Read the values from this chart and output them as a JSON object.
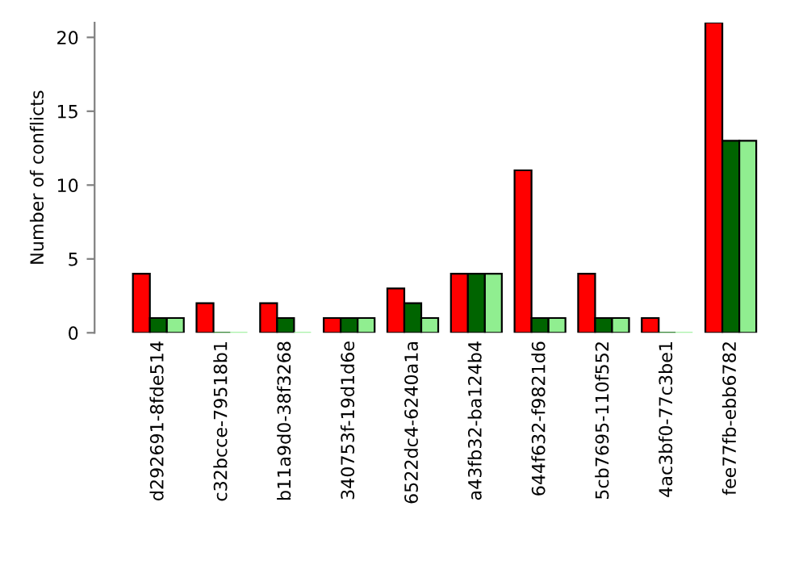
{
  "chart_data": {
    "type": "bar",
    "ylabel": "Number of conflicts",
    "categories": [
      "d292691-8fde514",
      "c32bcce-79518b1",
      "b11a9d0-38f3268",
      "340753f-19d1d6e",
      "6522dc4-6240a1a",
      "a43fb32-ba124b4",
      "644f632-f9821d6",
      "5cb7695-110f552",
      "4ac3bf0-77c3be1",
      "fee77fb-ebb6782"
    ],
    "series": [
      {
        "color": "#ff0000",
        "values": [
          4,
          2,
          2,
          1,
          3,
          4,
          11,
          4,
          1,
          21
        ]
      },
      {
        "color": "#006400",
        "values": [
          1,
          0,
          1,
          1,
          2,
          4,
          1,
          1,
          0,
          13
        ]
      },
      {
        "color": "#90ee90",
        "values": [
          1,
          0,
          0,
          1,
          1,
          4,
          1,
          1,
          0,
          13
        ]
      }
    ],
    "ylim": [
      0,
      21
    ],
    "yticks": [
      0,
      5,
      10,
      15,
      20
    ],
    "grid": false
  }
}
